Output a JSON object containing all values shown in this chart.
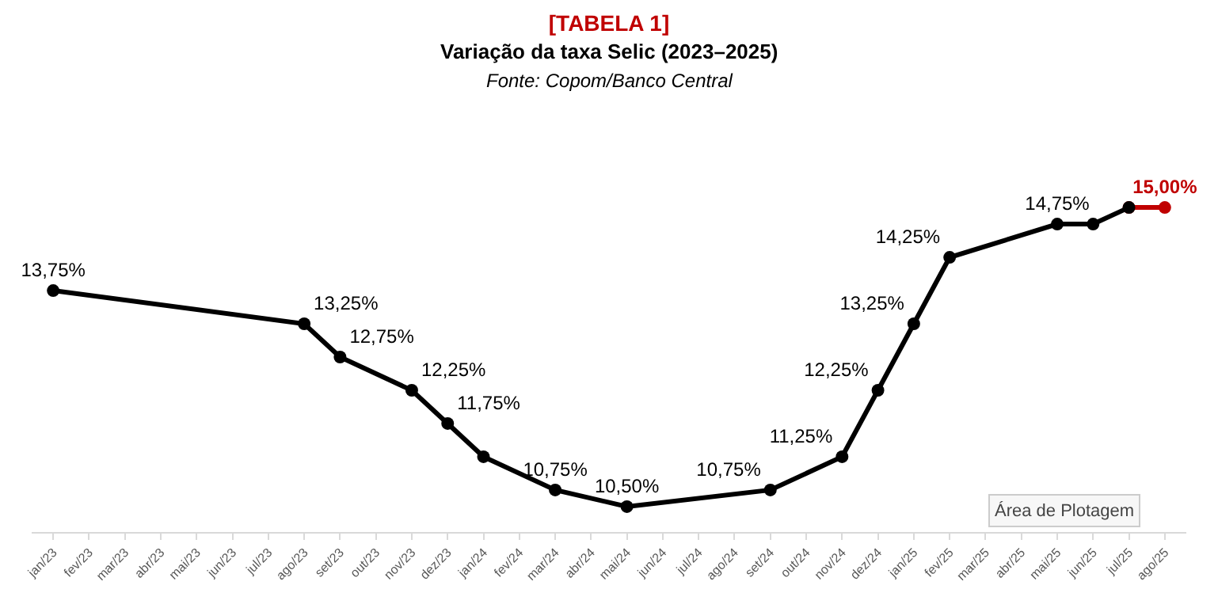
{
  "chart_data": {
    "type": "line",
    "title": "[TABELA 1]",
    "subtitle": "Variação da taxa Selic (2023–2025)",
    "annotations": [
      "Fonte: Copom/Banco Central",
      "Área de Plotagem"
    ],
    "categories": [
      "jan/23",
      "fev/23",
      "mar/23",
      "abr/23",
      "mai/23",
      "jun/23",
      "jul/23",
      "ago/23",
      "set/23",
      "out/23",
      "nov/23",
      "dez/23",
      "jan/24",
      "fev/24",
      "mar/24",
      "abr/24",
      "mai/24",
      "jun/24",
      "jul/24",
      "ago/24",
      "set/24",
      "out/24",
      "nov/24",
      "dez/24",
      "jan/25",
      "fev/25",
      "mar/25",
      "abr/25",
      "mai/25",
      "jun/25",
      "jul/25",
      "ago/25"
    ],
    "series": [
      {
        "color": "#000000",
        "values": [
          13.75,
          null,
          null,
          null,
          null,
          null,
          null,
          13.25,
          12.75,
          null,
          12.25,
          11.75,
          11.25,
          null,
          10.75,
          null,
          10.5,
          null,
          null,
          null,
          10.75,
          null,
          11.25,
          12.25,
          13.25,
          14.25,
          null,
          null,
          14.75,
          14.75,
          15,
          null
        ],
        "value_labels": [
          "13,75%",
          null,
          null,
          null,
          null,
          null,
          null,
          "13,25%",
          "12,75%",
          null,
          "12,25%",
          "11,75%",
          null,
          null,
          "10,75%",
          null,
          "10,50%",
          null,
          null,
          null,
          "10,75%",
          null,
          "11,25%",
          "12,25%",
          "13,25%",
          "14,25%",
          null,
          null,
          "14,75%",
          null,
          null,
          null
        ]
      },
      {
        "color": "#c00000",
        "values": [
          null,
          null,
          null,
          null,
          null,
          null,
          null,
          null,
          null,
          null,
          null,
          null,
          null,
          null,
          null,
          null,
          null,
          null,
          null,
          null,
          null,
          null,
          null,
          null,
          null,
          null,
          null,
          null,
          null,
          null,
          15,
          15
        ],
        "value_labels": [
          null,
          null,
          null,
          null,
          null,
          null,
          null,
          null,
          null,
          null,
          null,
          null,
          null,
          null,
          null,
          null,
          null,
          null,
          null,
          null,
          null,
          null,
          null,
          null,
          null,
          null,
          null,
          null,
          null,
          null,
          null,
          "15,00%"
        ]
      }
    ],
    "marker": "circle",
    "line_style": "solid",
    "grid": false,
    "tick_labels": "x"
  }
}
